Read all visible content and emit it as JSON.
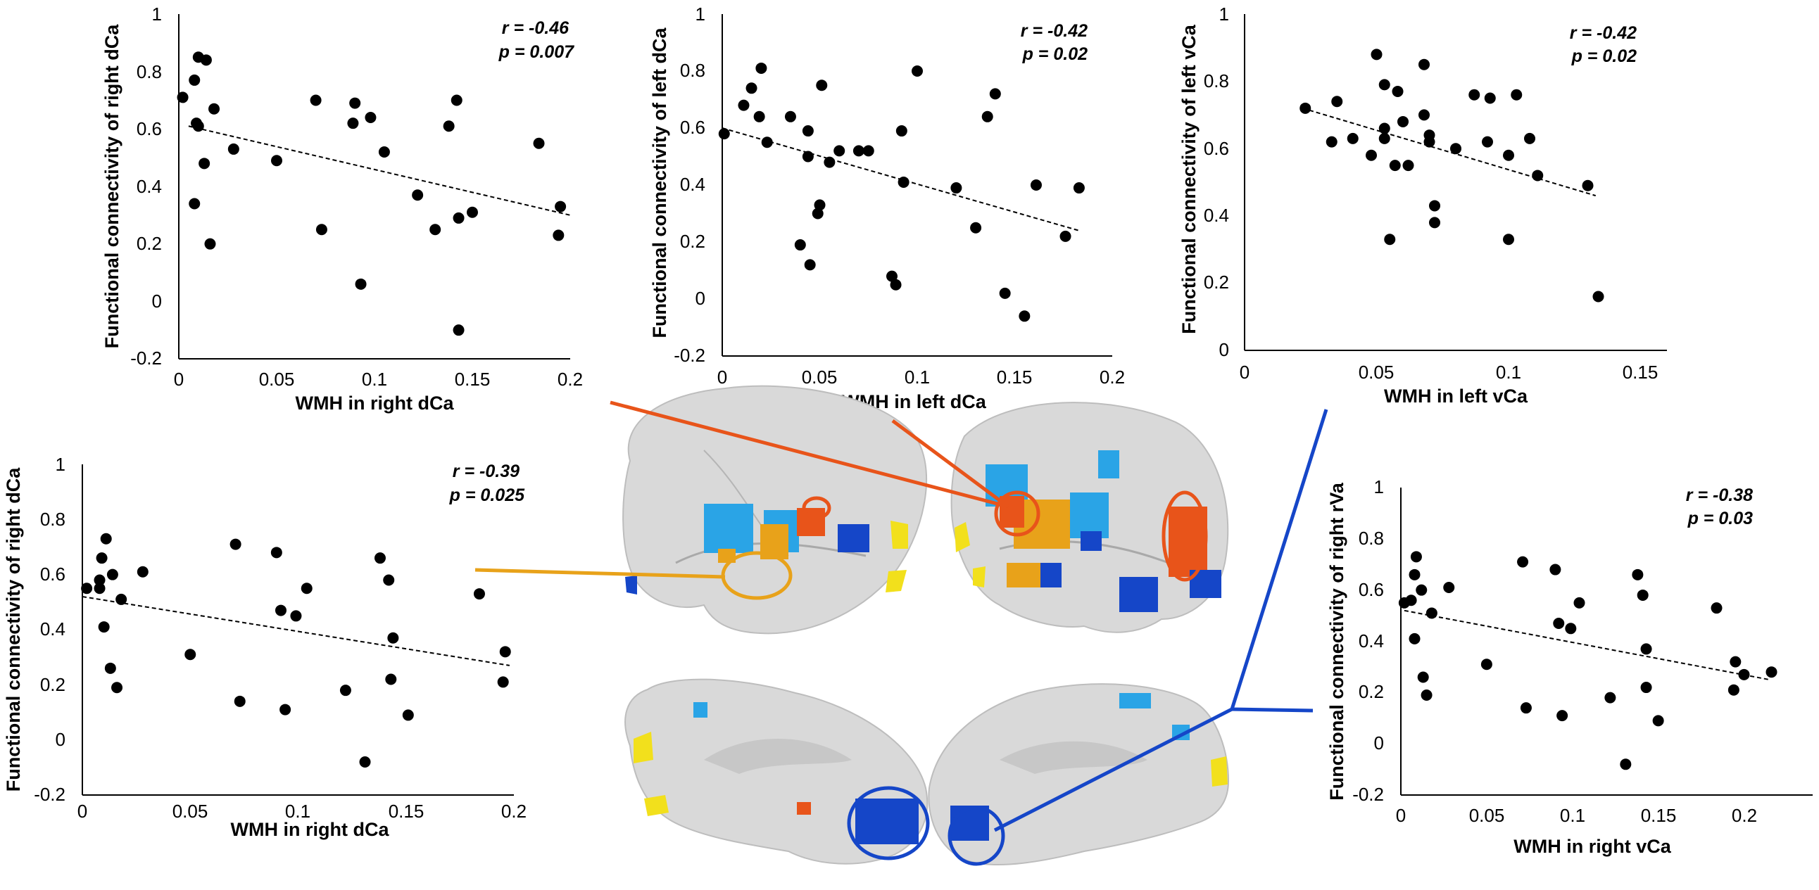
{
  "colors": {
    "orange": "#e8541a",
    "amber": "#e8a21a",
    "blue": "#1546c8",
    "light_blue": "#2aa4e6",
    "yellow": "#f2e01c",
    "cortex": "#d9d9d9"
  },
  "chart_data": [
    {
      "id": "p1",
      "type": "scatter",
      "xlabel": "WMH in right dCa",
      "ylabel": "Functional connectivity of right dCa",
      "xlim": [
        0,
        0.2
      ],
      "ylim": [
        -0.2,
        1
      ],
      "xticks": [
        "0",
        "0.05",
        "0.1",
        "0.15",
        "0.2"
      ],
      "yticks": [
        "-0.2",
        "0",
        "0.2",
        "0.4",
        "0.6",
        "0.8",
        "1"
      ],
      "stat": {
        "r": "r = -0.46",
        "p": "p = 0.007"
      },
      "trend": [
        [
          0.005,
          0.61
        ],
        [
          0.2,
          0.3
        ]
      ],
      "points": [
        [
          0.002,
          0.71
        ],
        [
          0.008,
          0.77
        ],
        [
          0.01,
          0.85
        ],
        [
          0.014,
          0.84
        ],
        [
          0.009,
          0.62
        ],
        [
          0.01,
          0.61
        ],
        [
          0.018,
          0.67
        ],
        [
          0.013,
          0.48
        ],
        [
          0.008,
          0.34
        ],
        [
          0.016,
          0.2
        ],
        [
          0.028,
          0.53
        ],
        [
          0.05,
          0.49
        ],
        [
          0.07,
          0.7
        ],
        [
          0.073,
          0.25
        ],
        [
          0.09,
          0.69
        ],
        [
          0.089,
          0.62
        ],
        [
          0.098,
          0.64
        ],
        [
          0.093,
          0.06
        ],
        [
          0.105,
          0.52
        ],
        [
          0.122,
          0.37
        ],
        [
          0.131,
          0.25
        ],
        [
          0.138,
          0.61
        ],
        [
          0.142,
          0.7
        ],
        [
          0.143,
          0.29
        ],
        [
          0.15,
          0.31
        ],
        [
          0.143,
          -0.1
        ],
        [
          0.184,
          0.55
        ],
        [
          0.195,
          0.33
        ],
        [
          0.194,
          0.23
        ]
      ]
    },
    {
      "id": "p2",
      "type": "scatter",
      "xlabel": "WMH  in left dCa",
      "ylabel": "Functional connectivity of left dCa",
      "xlim": [
        0,
        0.2
      ],
      "ylim": [
        -0.2,
        1
      ],
      "xticks": [
        "0",
        "0.05",
        "0.1",
        "0.15",
        "0.2"
      ],
      "yticks": [
        "-0.2",
        "0",
        "0.2",
        "0.4",
        "0.6",
        "0.8",
        "1"
      ],
      "stat": {
        "r": "r = -0.42",
        "p": "p = 0.02"
      },
      "trend": [
        [
          0.0,
          0.6
        ],
        [
          0.183,
          0.24
        ]
      ],
      "points": [
        [
          0.001,
          0.58
        ],
        [
          0.011,
          0.68
        ],
        [
          0.015,
          0.74
        ],
        [
          0.02,
          0.81
        ],
        [
          0.019,
          0.64
        ],
        [
          0.023,
          0.55
        ],
        [
          0.035,
          0.64
        ],
        [
          0.044,
          0.59
        ],
        [
          0.044,
          0.5
        ],
        [
          0.051,
          0.75
        ],
        [
          0.05,
          0.33
        ],
        [
          0.049,
          0.3
        ],
        [
          0.055,
          0.48
        ],
        [
          0.06,
          0.52
        ],
        [
          0.07,
          0.52
        ],
        [
          0.075,
          0.52
        ],
        [
          0.04,
          0.19
        ],
        [
          0.045,
          0.12
        ],
        [
          0.087,
          0.08
        ],
        [
          0.089,
          0.05
        ],
        [
          0.092,
          0.59
        ],
        [
          0.093,
          0.41
        ],
        [
          0.1,
          0.8
        ],
        [
          0.12,
          0.39
        ],
        [
          0.13,
          0.25
        ],
        [
          0.136,
          0.64
        ],
        [
          0.14,
          0.72
        ],
        [
          0.145,
          0.02
        ],
        [
          0.155,
          -0.06
        ],
        [
          0.161,
          0.4
        ],
        [
          0.176,
          0.22
        ],
        [
          0.183,
          0.39
        ]
      ]
    },
    {
      "id": "p3",
      "type": "scatter",
      "xlabel": "WMH in left vCa",
      "ylabel": "Functional connectivity of left vCa",
      "xlim": [
        0,
        0.16
      ],
      "ylim": [
        0,
        1
      ],
      "xticks": [
        "0",
        "0.05",
        "0.1",
        "0.15"
      ],
      "yticks": [
        "0",
        "0.2",
        "0.4",
        "0.6",
        "0.8",
        "1"
      ],
      "stat": {
        "r": "r = -0.42",
        "p": "p = 0.02"
      },
      "trend": [
        [
          0.022,
          0.72
        ],
        [
          0.133,
          0.46
        ]
      ],
      "points": [
        [
          0.023,
          0.72
        ],
        [
          0.033,
          0.62
        ],
        [
          0.035,
          0.74
        ],
        [
          0.041,
          0.63
        ],
        [
          0.05,
          0.88
        ],
        [
          0.048,
          0.58
        ],
        [
          0.053,
          0.79
        ],
        [
          0.053,
          0.66
        ],
        [
          0.053,
          0.63
        ],
        [
          0.058,
          0.77
        ],
        [
          0.057,
          0.55
        ],
        [
          0.055,
          0.33
        ],
        [
          0.062,
          0.55
        ],
        [
          0.06,
          0.68
        ],
        [
          0.068,
          0.85
        ],
        [
          0.068,
          0.7
        ],
        [
          0.07,
          0.64
        ],
        [
          0.07,
          0.62
        ],
        [
          0.072,
          0.43
        ],
        [
          0.072,
          0.38
        ],
        [
          0.08,
          0.6
        ],
        [
          0.087,
          0.76
        ],
        [
          0.092,
          0.62
        ],
        [
          0.093,
          0.75
        ],
        [
          0.1,
          0.58
        ],
        [
          0.103,
          0.76
        ],
        [
          0.1,
          0.33
        ],
        [
          0.108,
          0.63
        ],
        [
          0.111,
          0.52
        ],
        [
          0.13,
          0.49
        ],
        [
          0.134,
          0.16
        ]
      ]
    },
    {
      "id": "p4",
      "type": "scatter",
      "xlabel": "WMH in right dCa",
      "ylabel": "Functional connectivity of right dCa",
      "xlim": [
        0,
        0.2
      ],
      "ylim": [
        -0.2,
        1
      ],
      "xticks": [
        "0",
        "0.05",
        "0.1",
        "0.15",
        "0.2"
      ],
      "yticks": [
        "-0.2",
        "0",
        "0.2",
        "0.4",
        "0.6",
        "0.8",
        "1"
      ],
      "stat": {
        "r": "r = -0.39",
        "p": "p = 0.025"
      },
      "trend": [
        [
          0.0,
          0.52
        ],
        [
          0.198,
          0.27
        ]
      ],
      "points": [
        [
          0.002,
          0.55
        ],
        [
          0.008,
          0.58
        ],
        [
          0.009,
          0.66
        ],
        [
          0.011,
          0.73
        ],
        [
          0.008,
          0.55
        ],
        [
          0.01,
          0.41
        ],
        [
          0.014,
          0.6
        ],
        [
          0.013,
          0.26
        ],
        [
          0.016,
          0.19
        ],
        [
          0.018,
          0.51
        ],
        [
          0.028,
          0.61
        ],
        [
          0.05,
          0.31
        ],
        [
          0.071,
          0.71
        ],
        [
          0.073,
          0.14
        ],
        [
          0.09,
          0.68
        ],
        [
          0.092,
          0.47
        ],
        [
          0.094,
          0.11
        ],
        [
          0.099,
          0.45
        ],
        [
          0.104,
          0.55
        ],
        [
          0.122,
          0.18
        ],
        [
          0.131,
          -0.08
        ],
        [
          0.138,
          0.66
        ],
        [
          0.142,
          0.58
        ],
        [
          0.143,
          0.22
        ],
        [
          0.144,
          0.37
        ],
        [
          0.151,
          0.09
        ],
        [
          0.184,
          0.53
        ],
        [
          0.196,
          0.32
        ],
        [
          0.195,
          0.21
        ]
      ]
    },
    {
      "id": "p5",
      "type": "scatter",
      "xlabel": "WMH in right vCa",
      "ylabel": "Functional connectivity of right rVa",
      "xlim": [
        0,
        0.24
      ],
      "ylim": [
        -0.2,
        1
      ],
      "xticks": [
        "0",
        "0.05",
        "0.1",
        "0.15",
        "0.2"
      ],
      "yticks": [
        "-0.2",
        "0",
        "0.2",
        "0.4",
        "0.6",
        "0.8",
        "1"
      ],
      "stat": {
        "r": "r = -0.38",
        "p": "p = 0.03"
      },
      "trend": [
        [
          0.002,
          0.52
        ],
        [
          0.215,
          0.25
        ]
      ],
      "points": [
        [
          0.002,
          0.55
        ],
        [
          0.006,
          0.56
        ],
        [
          0.008,
          0.66
        ],
        [
          0.009,
          0.73
        ],
        [
          0.012,
          0.6
        ],
        [
          0.008,
          0.41
        ],
        [
          0.013,
          0.26
        ],
        [
          0.015,
          0.19
        ],
        [
          0.018,
          0.51
        ],
        [
          0.028,
          0.61
        ],
        [
          0.05,
          0.31
        ],
        [
          0.071,
          0.71
        ],
        [
          0.073,
          0.14
        ],
        [
          0.09,
          0.68
        ],
        [
          0.092,
          0.47
        ],
        [
          0.094,
          0.11
        ],
        [
          0.099,
          0.45
        ],
        [
          0.104,
          0.55
        ],
        [
          0.122,
          0.18
        ],
        [
          0.131,
          -0.08
        ],
        [
          0.138,
          0.66
        ],
        [
          0.141,
          0.58
        ],
        [
          0.143,
          0.22
        ],
        [
          0.143,
          0.37
        ],
        [
          0.15,
          0.09
        ],
        [
          0.184,
          0.53
        ],
        [
          0.195,
          0.32
        ],
        [
          0.194,
          0.21
        ],
        [
          0.2,
          0.27
        ],
        [
          0.216,
          0.28
        ]
      ]
    }
  ],
  "brain_images": [
    {
      "id": "lateral-left",
      "label": "left hemisphere lateral view"
    },
    {
      "id": "lateral-right",
      "label": "right hemisphere lateral view"
    },
    {
      "id": "medial-left",
      "label": "left hemisphere medial view"
    },
    {
      "id": "medial-right",
      "label": "right hemisphere medial view"
    }
  ]
}
